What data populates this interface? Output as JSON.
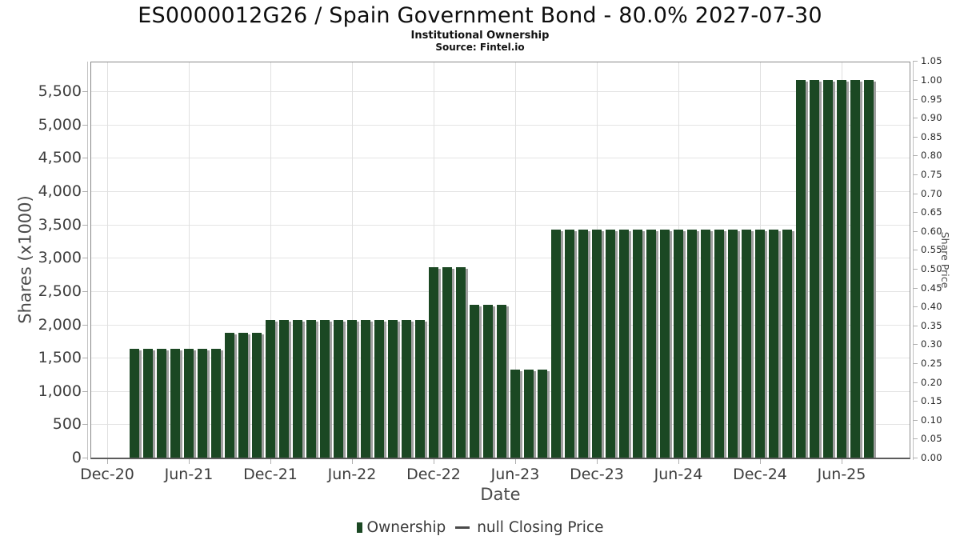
{
  "header": {
    "title": "ES0000012G26 / Spain Government Bond - 80.0% 2027-07-30",
    "subtitle": "Institutional Ownership",
    "source": "Source: Fintel.io"
  },
  "legend": {
    "ownership_label": "Ownership",
    "price_label": "null Closing Price"
  },
  "colors": {
    "bar": "#1b4823",
    "bar_shadow": "#9f9f9f",
    "grid": "#e3e3e3",
    "axis_text": "#3d3d3d"
  },
  "chart_data": {
    "type": "bar",
    "title": "ES0000012G26 / Spain Government Bond - 80.0% 2027-07-30",
    "subtitle": "Institutional Ownership",
    "source": "Source: Fintel.io",
    "xlabel": "Date",
    "ylabel": "Shares (x1000)",
    "y2label": "Share Price",
    "legend_position": "bottom",
    "grid": true,
    "ylim": [
      0,
      5935
    ],
    "y2lim": [
      0,
      1.0466
    ],
    "y_ticks": [
      0,
      500,
      1000,
      1500,
      2000,
      2500,
      3000,
      3500,
      4000,
      4500,
      5000,
      5500
    ],
    "y_tick_labels": [
      "0",
      "500",
      "1,000",
      "1,500",
      "2,000",
      "2,500",
      "3,000",
      "3,500",
      "4,000",
      "4,500",
      "5,000",
      "5,500"
    ],
    "y2_ticks": [
      0.0,
      0.05,
      0.1,
      0.15,
      0.2,
      0.25,
      0.3,
      0.35,
      0.4,
      0.45,
      0.5,
      0.55,
      0.6,
      0.65,
      0.7,
      0.75,
      0.8,
      0.85,
      0.9,
      0.95,
      1.0,
      1.05
    ],
    "x_axis_tick_labels": [
      "Dec-20",
      "Jun-21",
      "Dec-21",
      "Jun-22",
      "Dec-22",
      "Jun-23",
      "Dec-23",
      "Jun-24",
      "Dec-24",
      "Jun-25"
    ],
    "x_axis_start": "Dec-20",
    "months_per_major_tick": 6,
    "first_bar_offset_months": 2,
    "series": [
      {
        "name": "Ownership",
        "type": "bar",
        "axis": "left"
      },
      {
        "name": "null Closing Price",
        "type": "line",
        "axis": "right",
        "values_visible": false
      }
    ],
    "categories": [
      "Feb-21",
      "Mar-21",
      "Apr-21",
      "May-21",
      "Jun-21",
      "Jul-21",
      "Aug-21",
      "Sep-21",
      "Oct-21",
      "Nov-21",
      "Dec-21",
      "Jan-22",
      "Feb-22",
      "Mar-22",
      "Apr-22",
      "May-22",
      "Jun-22",
      "Jul-22",
      "Aug-22",
      "Sep-22",
      "Oct-22",
      "Nov-22",
      "Dec-22",
      "Jan-23",
      "Feb-23",
      "Mar-23",
      "Apr-23",
      "May-23",
      "Jun-23",
      "Jul-23",
      "Aug-23",
      "Sep-23",
      "Oct-23",
      "Nov-23",
      "Dec-23",
      "Jan-24",
      "Feb-24",
      "Mar-24",
      "Apr-24",
      "May-24",
      "Jun-24",
      "Jul-24",
      "Aug-24",
      "Sep-24",
      "Oct-24",
      "Nov-24",
      "Dec-24",
      "Jan-25",
      "Feb-25",
      "Mar-25",
      "Apr-25",
      "May-25",
      "Jun-25",
      "Jul-25",
      "Aug-25"
    ],
    "values": [
      1640,
      1640,
      1640,
      1640,
      1640,
      1640,
      1640,
      1880,
      1880,
      1880,
      2070,
      2070,
      2070,
      2070,
      2070,
      2070,
      2070,
      2070,
      2070,
      2070,
      2070,
      2070,
      2860,
      2860,
      2860,
      2290,
      2290,
      2290,
      1320,
      1320,
      1320,
      3430,
      3430,
      3430,
      3430,
      3430,
      3430,
      3430,
      3430,
      3430,
      3430,
      3430,
      3430,
      3430,
      3430,
      3430,
      3430,
      3430,
      3430,
      5670,
      5670,
      5670,
      5670,
      5670,
      5670
    ]
  }
}
